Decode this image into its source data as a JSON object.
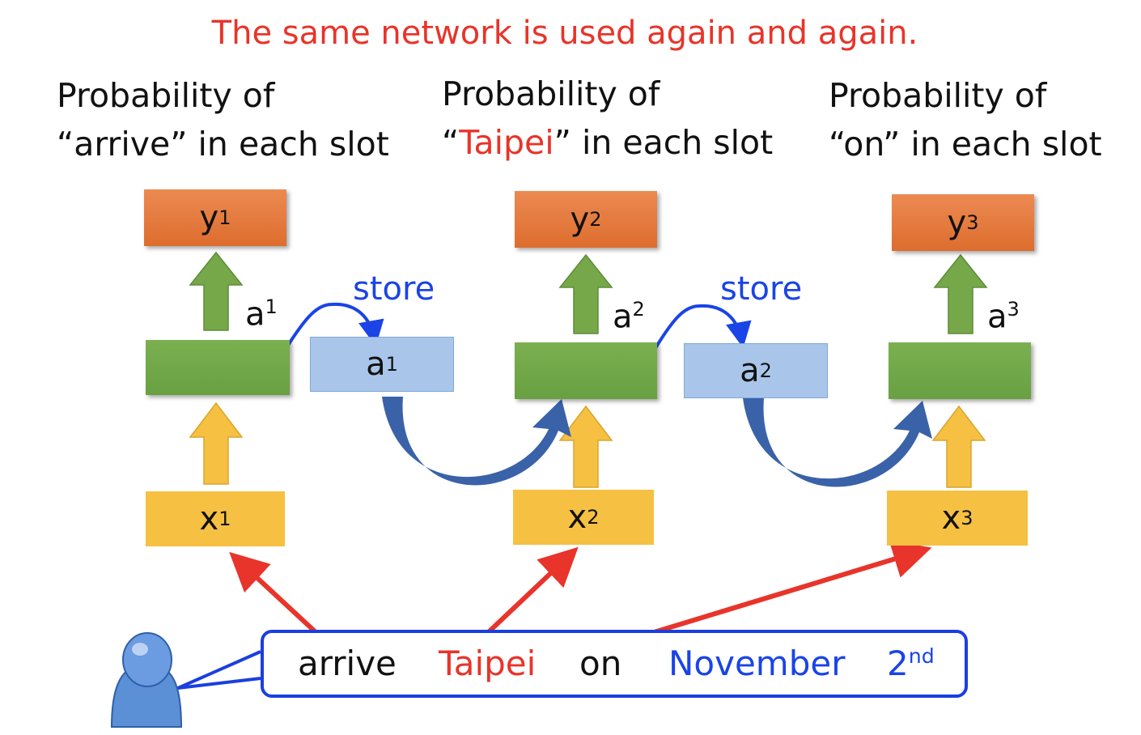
{
  "title": "The same network is used again and again.",
  "columns": [
    {
      "prob_line1": "Probability of",
      "q_open": "“",
      "word": "arrive",
      "q_close": "”",
      "suffix": " in each slot",
      "y": "y",
      "a": "a",
      "x": "x",
      "index": "1"
    },
    {
      "prob_line1": "Probability of",
      "q_open": "“",
      "word": "Taipei",
      "q_close": "”",
      "suffix": " in each slot",
      "y": "y",
      "a": "a",
      "x": "x",
      "index": "2"
    },
    {
      "prob_line1": "Probability of",
      "q_open": "“",
      "word": "on",
      "q_close": "”",
      "suffix": " in each slot",
      "y": "y",
      "a": "a",
      "x": "x",
      "index": "3"
    }
  ],
  "memory": [
    {
      "store": "store",
      "a": "a",
      "index": "1"
    },
    {
      "store": "store",
      "a": "a",
      "index": "2"
    }
  ],
  "sentence": {
    "words": [
      "arrive",
      "Taipei",
      "on",
      "November",
      "2"
    ],
    "ordinal_suffix": "nd"
  },
  "colors": {
    "title": "#e8342a",
    "highlight_word": "#e8342a",
    "blue_words": "#1a44e6",
    "output_box": "#e37a3e",
    "hidden_box": "#70a646",
    "input_box": "#f6c042",
    "memory_box": "#a9c6ea",
    "up_arrow_green": "#76a84a",
    "up_arrow_yellow": "#f6c042",
    "curve_arrow": "#3a62a8",
    "red_arrow": "#e8342a",
    "sentence_border": "#1a3fe0"
  },
  "icons": [
    "user-icon",
    "up-arrow-icon",
    "curved-arrow-icon",
    "store-arrow-icon",
    "pointer-arrow-icon"
  ]
}
